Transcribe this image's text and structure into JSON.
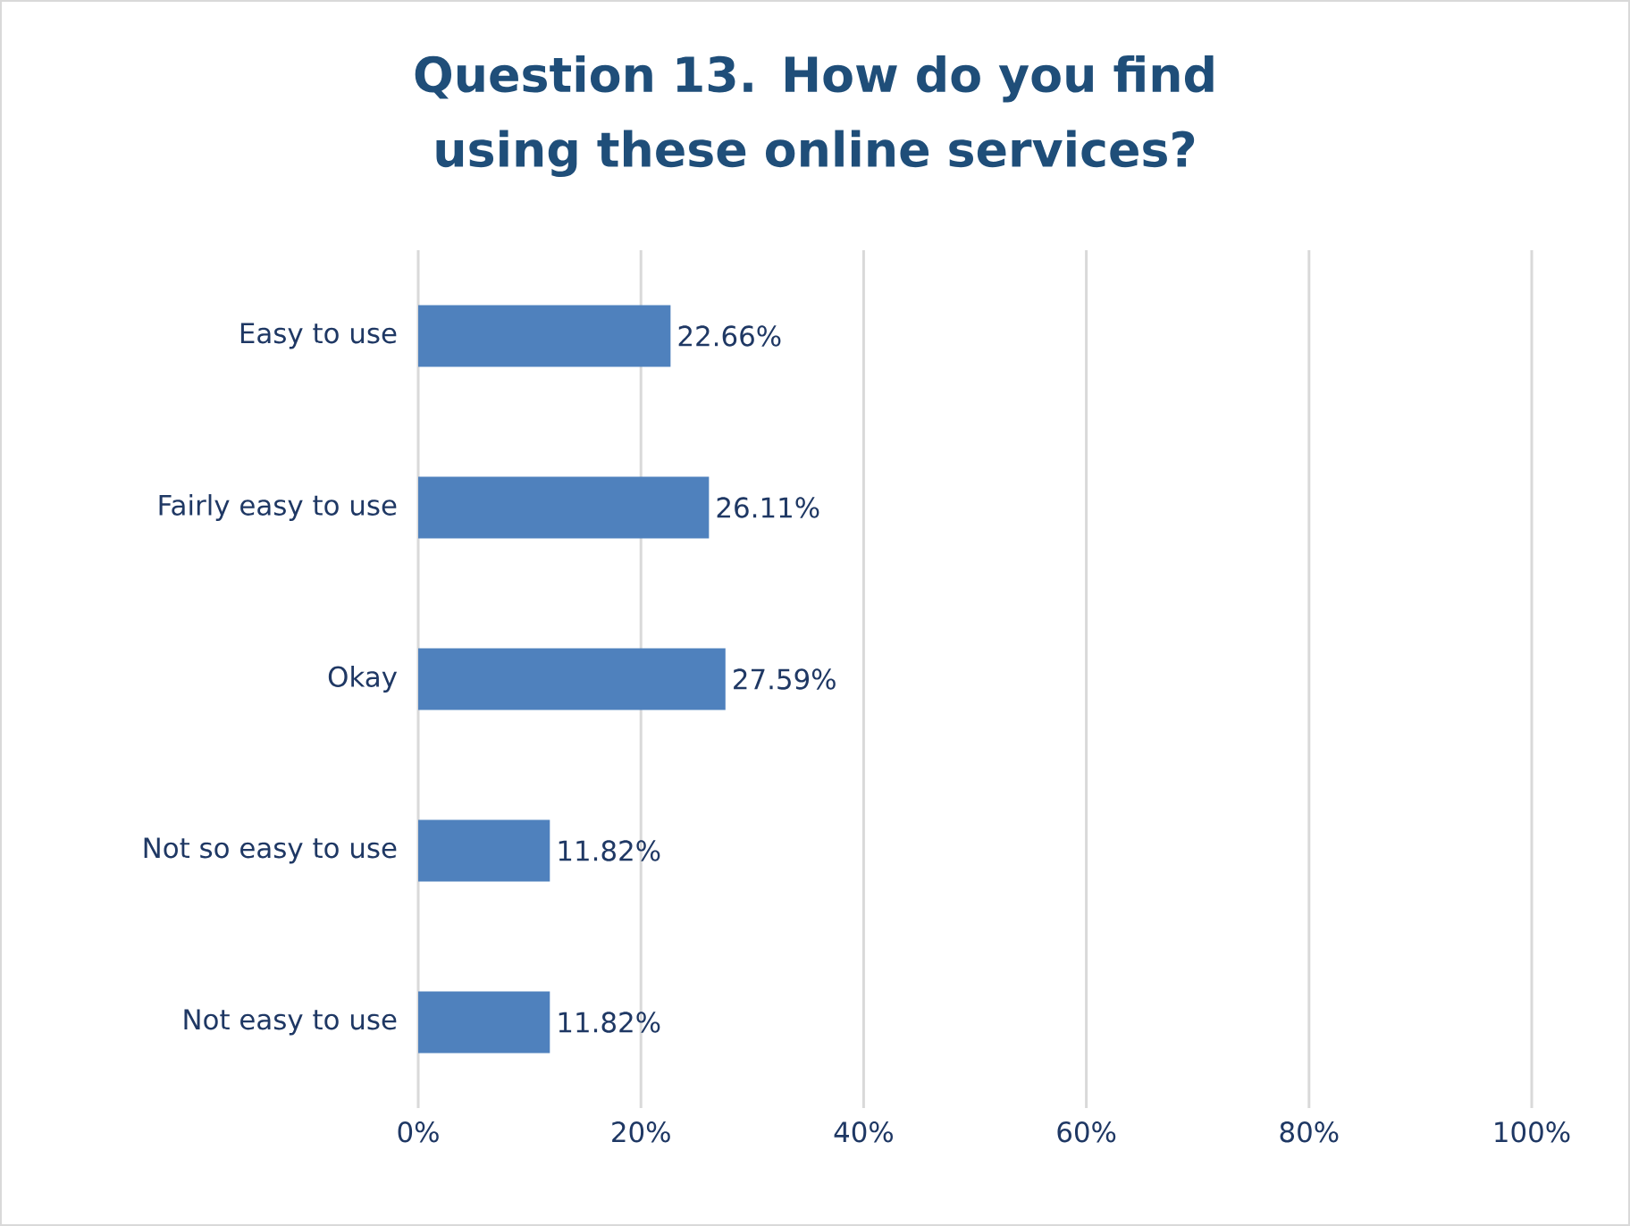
{
  "chart_data": {
    "type": "bar",
    "orientation": "horizontal",
    "title": "Question 13. How do you find using these online services?",
    "categories": [
      "Easy to use",
      "Fairly easy to use",
      "Okay",
      "Not so easy to use",
      "Not easy to use"
    ],
    "values": [
      22.66,
      26.11,
      27.59,
      11.82,
      11.82
    ],
    "value_labels": [
      "22.66%",
      "26.11%",
      "27.59%",
      "11.82%",
      "11.82%"
    ],
    "color": "#4f81bd",
    "xlim": [
      0,
      100
    ],
    "xticks": [
      {
        "value": 0,
        "label": "0%"
      },
      {
        "value": 20,
        "label": "20%"
      },
      {
        "value": 40,
        "label": "40%"
      },
      {
        "value": 60,
        "label": "60%"
      },
      {
        "value": 80,
        "label": "80%"
      },
      {
        "value": 100,
        "label": "100%"
      }
    ],
    "grid": "x"
  }
}
